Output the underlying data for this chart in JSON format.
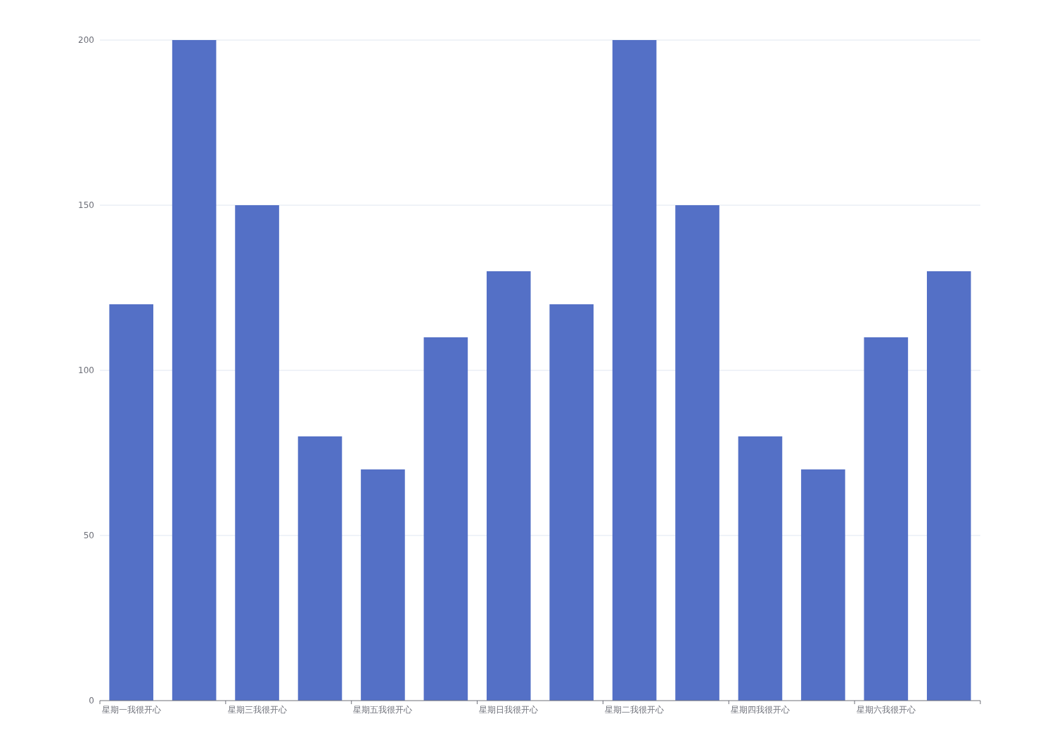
{
  "chart_data": {
    "type": "bar",
    "categories": [
      "星期一我很开心",
      null,
      "星期三我很开心",
      null,
      "星期五我很开心",
      null,
      "星期日我很开心",
      null,
      "星期二我很开心",
      null,
      "星期四我很开心",
      null,
      "星期六我很开心",
      null
    ],
    "values": [
      120,
      200,
      150,
      80,
      70,
      110,
      130,
      120,
      200,
      150,
      80,
      70,
      110,
      130
    ],
    "color": "#5470c6",
    "ylim": [
      0,
      200
    ],
    "yticks": [
      0,
      50,
      100,
      150,
      200
    ],
    "grid": "y"
  }
}
